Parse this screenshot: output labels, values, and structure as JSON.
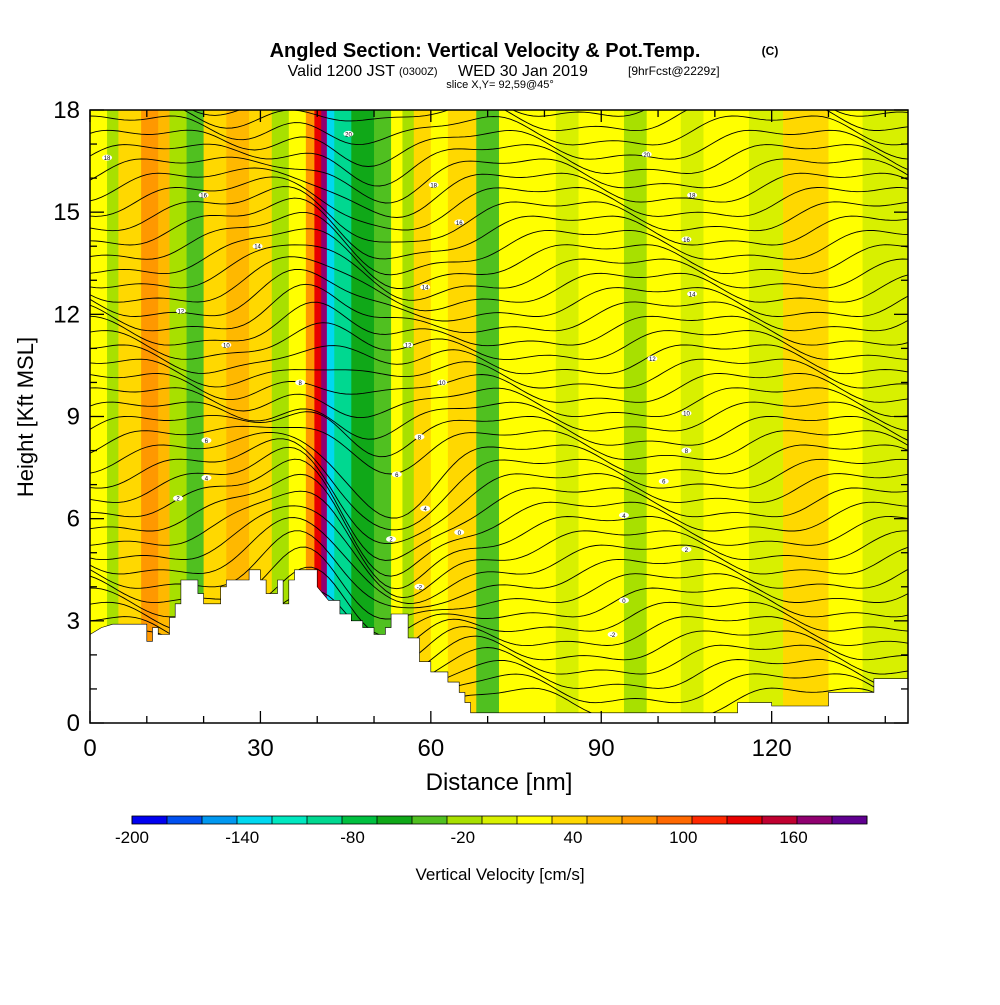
{
  "chart_data": {
    "type": "heatmap",
    "title": {
      "main": "Angled Section: Vertical Velocity & Pot.Temp.",
      "unit": "(C)",
      "valid_prefix": "Valid 1200 JST",
      "zulu": "(0300Z)",
      "valid_date": "WED 30 Jan 2019",
      "forecast": "[9hrFcst@2229z]",
      "slice": "slice X,Y= 92,59@45°"
    },
    "xlabel": "Distance [nm]",
    "ylabel": "Height [Kft MSL]",
    "xlim": [
      0,
      144
    ],
    "ylim": [
      0,
      18
    ],
    "x_ticks": [
      0,
      30,
      60,
      90,
      120
    ],
    "y_ticks": [
      0,
      3,
      6,
      9,
      12,
      15,
      18
    ],
    "colorbar": {
      "label": "Vertical Velocity [cm/s]",
      "tick_labels": [
        "-200",
        "-140",
        "-80",
        "-20",
        "40",
        "100",
        "160"
      ],
      "tick_values": [
        -200,
        -140,
        -80,
        -20,
        40,
        100,
        160
      ],
      "range": [
        -200,
        200
      ],
      "bins": [
        {
          "lo": -200,
          "color": "#0000f0"
        },
        {
          "lo": -180,
          "color": "#0050f0"
        },
        {
          "lo": -160,
          "color": "#0098f0"
        },
        {
          "lo": -140,
          "color": "#00d8f0"
        },
        {
          "lo": -120,
          "color": "#00e8c0"
        },
        {
          "lo": -100,
          "color": "#00d890"
        },
        {
          "lo": -80,
          "color": "#00c040"
        },
        {
          "lo": -60,
          "color": "#10a818"
        },
        {
          "lo": -40,
          "color": "#50c020"
        },
        {
          "lo": -20,
          "color": "#a8e000"
        },
        {
          "lo": 0,
          "color": "#d8f000"
        },
        {
          "lo": 20,
          "color": "#ffff00"
        },
        {
          "lo": 40,
          "color": "#ffd800"
        },
        {
          "lo": 60,
          "color": "#ffb800"
        },
        {
          "lo": 80,
          "color": "#ff9800"
        },
        {
          "lo": 100,
          "color": "#ff6800"
        },
        {
          "lo": 120,
          "color": "#ff2800"
        },
        {
          "lo": 140,
          "color": "#e80000"
        },
        {
          "lo": 160,
          "color": "#c00030"
        },
        {
          "lo": 180,
          "color": "#900070"
        },
        {
          "lo": 200,
          "color": "#600090"
        }
      ]
    },
    "bands": [
      {
        "x": 0,
        "w": 3,
        "color": "#ffff00"
      },
      {
        "x": 3,
        "w": 2,
        "color": "#a8e000"
      },
      {
        "x": 5,
        "w": 4,
        "color": "#ffd800"
      },
      {
        "x": 9,
        "w": 3,
        "color": "#ff9800"
      },
      {
        "x": 12,
        "w": 2,
        "color": "#ffb800"
      },
      {
        "x": 14,
        "w": 3,
        "color": "#a8e000"
      },
      {
        "x": 17,
        "w": 3,
        "color": "#50c020"
      },
      {
        "x": 20,
        "w": 4,
        "color": "#ffd800"
      },
      {
        "x": 24,
        "w": 4,
        "color": "#ffb800"
      },
      {
        "x": 28,
        "w": 4,
        "color": "#ffd800"
      },
      {
        "x": 32,
        "w": 3,
        "color": "#a8e000"
      },
      {
        "x": 35,
        "w": 3,
        "color": "#ffff00"
      },
      {
        "x": 38,
        "w": 1.5,
        "color": "#ff9800"
      },
      {
        "x": 39.5,
        "w": 1.2,
        "color": "#e80000"
      },
      {
        "x": 40.7,
        "w": 1,
        "color": "#900070"
      },
      {
        "x": 41.7,
        "w": 1.3,
        "color": "#00d8f0"
      },
      {
        "x": 43,
        "w": 3,
        "color": "#00d890"
      },
      {
        "x": 46,
        "w": 4,
        "color": "#10a818"
      },
      {
        "x": 50,
        "w": 3,
        "color": "#50c020"
      },
      {
        "x": 53,
        "w": 2,
        "color": "#ffff00"
      },
      {
        "x": 55,
        "w": 2,
        "color": "#a8e000"
      },
      {
        "x": 57,
        "w": 3,
        "color": "#ffd800"
      },
      {
        "x": 60,
        "w": 3,
        "color": "#ffff00"
      },
      {
        "x": 63,
        "w": 5,
        "color": "#ffd800"
      },
      {
        "x": 68,
        "w": 4,
        "color": "#50c020"
      },
      {
        "x": 72,
        "w": 10,
        "color": "#ffff00"
      },
      {
        "x": 82,
        "w": 4,
        "color": "#d8f000"
      },
      {
        "x": 86,
        "w": 8,
        "color": "#ffff00"
      },
      {
        "x": 94,
        "w": 4,
        "color": "#a8e000"
      },
      {
        "x": 98,
        "w": 6,
        "color": "#ffff00"
      },
      {
        "x": 104,
        "w": 4,
        "color": "#d8f000"
      },
      {
        "x": 108,
        "w": 8,
        "color": "#ffff00"
      },
      {
        "x": 116,
        "w": 6,
        "color": "#d8f000"
      },
      {
        "x": 122,
        "w": 8,
        "color": "#ffd800"
      },
      {
        "x": 130,
        "w": 6,
        "color": "#ffff00"
      },
      {
        "x": 136,
        "w": 8,
        "color": "#d8f000"
      }
    ],
    "theta_labels": [
      {
        "x": 3,
        "y": 16.6,
        "text": "18"
      },
      {
        "x": 20,
        "y": 15.5,
        "text": "16"
      },
      {
        "x": 29.5,
        "y": 14.0,
        "text": "14"
      },
      {
        "x": 16,
        "y": 12.1,
        "text": "12"
      },
      {
        "x": 24,
        "y": 11.1,
        "text": "10"
      },
      {
        "x": 37,
        "y": 10.0,
        "text": "8"
      },
      {
        "x": 20.5,
        "y": 8.3,
        "text": "6"
      },
      {
        "x": 20.5,
        "y": 7.2,
        "text": "4"
      },
      {
        "x": 15.5,
        "y": 6.6,
        "text": "2"
      },
      {
        "x": 45.5,
        "y": 17.3,
        "text": "20"
      },
      {
        "x": 60.5,
        "y": 15.8,
        "text": "18"
      },
      {
        "x": 65,
        "y": 14.7,
        "text": "16"
      },
      {
        "x": 59,
        "y": 12.8,
        "text": "14"
      },
      {
        "x": 56,
        "y": 11.1,
        "text": "12"
      },
      {
        "x": 62,
        "y": 10.0,
        "text": "10"
      },
      {
        "x": 58,
        "y": 8.4,
        "text": "8"
      },
      {
        "x": 54,
        "y": 7.3,
        "text": "6"
      },
      {
        "x": 59,
        "y": 6.3,
        "text": "4"
      },
      {
        "x": 53,
        "y": 5.4,
        "text": "2"
      },
      {
        "x": 65,
        "y": 5.6,
        "text": "0"
      },
      {
        "x": 58,
        "y": 4.0,
        "text": "-2"
      },
      {
        "x": 98,
        "y": 16.7,
        "text": "20"
      },
      {
        "x": 106,
        "y": 15.5,
        "text": "18"
      },
      {
        "x": 105,
        "y": 14.2,
        "text": "16"
      },
      {
        "x": 106,
        "y": 12.6,
        "text": "14"
      },
      {
        "x": 99,
        "y": 10.7,
        "text": "12"
      },
      {
        "x": 105,
        "y": 9.1,
        "text": "10"
      },
      {
        "x": 105,
        "y": 8.0,
        "text": "8"
      },
      {
        "x": 101,
        "y": 7.1,
        "text": "6"
      },
      {
        "x": 94,
        "y": 6.1,
        "text": "4"
      },
      {
        "x": 105,
        "y": 5.1,
        "text": "2"
      },
      {
        "x": 94,
        "y": 3.6,
        "text": "0"
      },
      {
        "x": 92,
        "y": 2.6,
        "text": "-2"
      }
    ]
  }
}
